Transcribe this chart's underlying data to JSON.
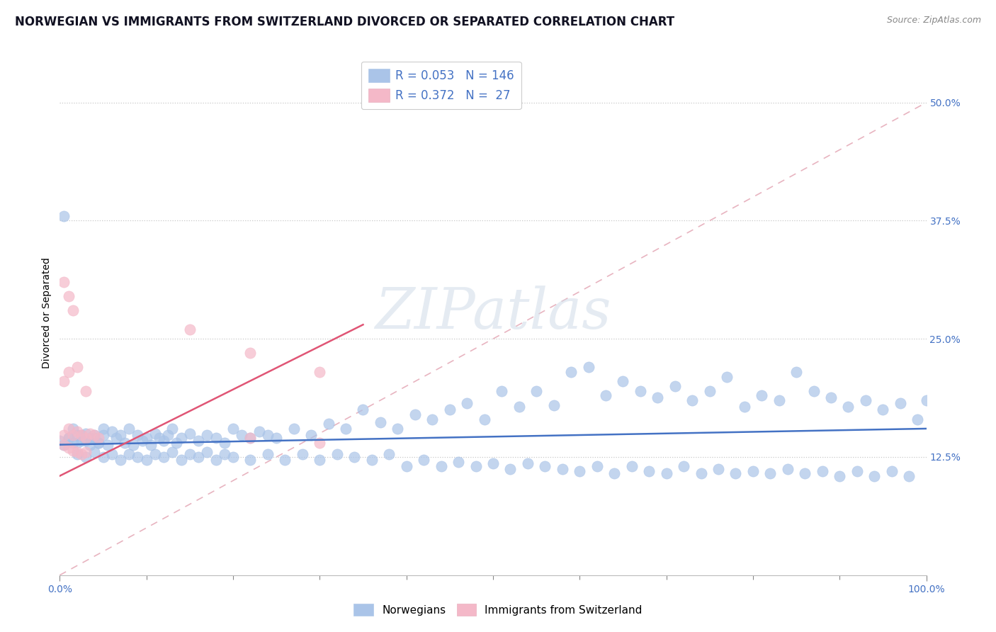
{
  "title": "NORWEGIAN VS IMMIGRANTS FROM SWITZERLAND DIVORCED OR SEPARATED CORRELATION CHART",
  "source": "Source: ZipAtlas.com",
  "ylabel": "Divorced or Separated",
  "xlim": [
    0.0,
    1.0
  ],
  "ylim": [
    0.0,
    0.555
  ],
  "yticks": [
    0.125,
    0.25,
    0.375,
    0.5
  ],
  "ytick_labels": [
    "12.5%",
    "25.0%",
    "37.5%",
    "50.0%"
  ],
  "xtick_labels": [
    "0.0%",
    "100.0%"
  ],
  "legend_labels": [
    "Norwegians",
    "Immigrants from Switzerland"
  ],
  "norwegian_color": "#aac4e8",
  "swiss_color": "#f4b8c8",
  "norwegian_line_color": "#4472c4",
  "swiss_line_color": "#e05575",
  "diag_line_color": "#e8b0c0",
  "R_norwegian": 0.053,
  "N_norwegian": 146,
  "R_swiss": 0.372,
  "N_swiss": 27,
  "nor_trendline": [
    0.0,
    1.0,
    0.138,
    0.155
  ],
  "swiss_trendline": [
    0.0,
    0.35,
    0.105,
    0.265
  ],
  "watermark_text": "ZIPatlas",
  "title_fontsize": 12,
  "axis_label_fontsize": 10,
  "tick_fontsize": 10,
  "norwegian_x": [
    0.0,
    0.005,
    0.01,
    0.015,
    0.02,
    0.025,
    0.03,
    0.035,
    0.04,
    0.045,
    0.05,
    0.055,
    0.06,
    0.065,
    0.07,
    0.075,
    0.08,
    0.085,
    0.09,
    0.095,
    0.1,
    0.105,
    0.11,
    0.115,
    0.12,
    0.125,
    0.13,
    0.135,
    0.14,
    0.15,
    0.16,
    0.17,
    0.18,
    0.19,
    0.2,
    0.21,
    0.22,
    0.23,
    0.24,
    0.25,
    0.27,
    0.29,
    0.31,
    0.33,
    0.35,
    0.37,
    0.39,
    0.41,
    0.43,
    0.45,
    0.47,
    0.49,
    0.51,
    0.53,
    0.55,
    0.57,
    0.59,
    0.61,
    0.63,
    0.65,
    0.67,
    0.69,
    0.71,
    0.73,
    0.75,
    0.77,
    0.79,
    0.81,
    0.83,
    0.85,
    0.87,
    0.89,
    0.91,
    0.93,
    0.95,
    0.97,
    0.99,
    1.0,
    0.02,
    0.03,
    0.04,
    0.05,
    0.06,
    0.07,
    0.08,
    0.09,
    0.1,
    0.11,
    0.12,
    0.13,
    0.14,
    0.15,
    0.16,
    0.17,
    0.18,
    0.19,
    0.2,
    0.22,
    0.24,
    0.26,
    0.28,
    0.3,
    0.32,
    0.34,
    0.36,
    0.38,
    0.4,
    0.42,
    0.44,
    0.46,
    0.48,
    0.5,
    0.52,
    0.54,
    0.56,
    0.58,
    0.6,
    0.62,
    0.64,
    0.66,
    0.68,
    0.7,
    0.72,
    0.74,
    0.76,
    0.78,
    0.8,
    0.82,
    0.84,
    0.86,
    0.88,
    0.9,
    0.92,
    0.94,
    0.96,
    0.98,
    0.005,
    0.01,
    0.015,
    0.02,
    0.025,
    0.03,
    0.035,
    0.04,
    0.045,
    0.05
  ],
  "norwegian_y": [
    0.142,
    0.138,
    0.145,
    0.14,
    0.148,
    0.142,
    0.15,
    0.138,
    0.145,
    0.14,
    0.148,
    0.138,
    0.152,
    0.145,
    0.148,
    0.14,
    0.155,
    0.138,
    0.148,
    0.142,
    0.145,
    0.138,
    0.15,
    0.145,
    0.142,
    0.148,
    0.155,
    0.14,
    0.145,
    0.15,
    0.142,
    0.148,
    0.145,
    0.14,
    0.155,
    0.148,
    0.145,
    0.152,
    0.148,
    0.145,
    0.155,
    0.148,
    0.16,
    0.155,
    0.175,
    0.162,
    0.155,
    0.17,
    0.165,
    0.175,
    0.182,
    0.165,
    0.195,
    0.178,
    0.195,
    0.18,
    0.215,
    0.22,
    0.19,
    0.205,
    0.195,
    0.188,
    0.2,
    0.185,
    0.195,
    0.21,
    0.178,
    0.19,
    0.185,
    0.215,
    0.195,
    0.188,
    0.178,
    0.185,
    0.175,
    0.182,
    0.165,
    0.185,
    0.128,
    0.125,
    0.13,
    0.125,
    0.128,
    0.122,
    0.128,
    0.125,
    0.122,
    0.128,
    0.125,
    0.13,
    0.122,
    0.128,
    0.125,
    0.13,
    0.122,
    0.128,
    0.125,
    0.122,
    0.128,
    0.122,
    0.128,
    0.122,
    0.128,
    0.125,
    0.122,
    0.128,
    0.115,
    0.122,
    0.115,
    0.12,
    0.115,
    0.118,
    0.112,
    0.118,
    0.115,
    0.112,
    0.11,
    0.115,
    0.108,
    0.115,
    0.11,
    0.108,
    0.115,
    0.108,
    0.112,
    0.108,
    0.11,
    0.108,
    0.112,
    0.108,
    0.11,
    0.105,
    0.11,
    0.105,
    0.11,
    0.105,
    0.38,
    0.145,
    0.155,
    0.14,
    0.148,
    0.142,
    0.145,
    0.148,
    0.14,
    0.155
  ],
  "swiss_x": [
    0.005,
    0.01,
    0.015,
    0.02,
    0.025,
    0.03,
    0.035,
    0.04,
    0.045,
    0.005,
    0.01,
    0.015,
    0.02,
    0.025,
    0.03,
    0.005,
    0.01,
    0.02,
    0.03,
    0.15,
    0.22,
    0.3,
    0.005,
    0.01,
    0.015,
    0.22,
    0.3
  ],
  "swiss_y": [
    0.148,
    0.155,
    0.148,
    0.152,
    0.148,
    0.145,
    0.15,
    0.148,
    0.145,
    0.138,
    0.135,
    0.132,
    0.13,
    0.128,
    0.13,
    0.205,
    0.215,
    0.22,
    0.195,
    0.26,
    0.235,
    0.215,
    0.31,
    0.295,
    0.28,
    0.145,
    0.14
  ]
}
